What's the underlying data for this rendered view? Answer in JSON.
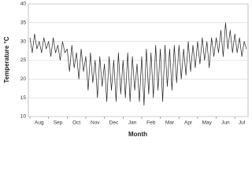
{
  "chart_data": {
    "type": "line",
    "xlabel": "Month",
    "ylabel": "Temperature °C",
    "categories": [
      null,
      null,
      null,
      null,
      "Aug",
      null,
      null,
      null,
      null,
      null,
      null,
      null,
      "Sep",
      null,
      null,
      null,
      null,
      null,
      null,
      null,
      "Oct",
      null,
      null,
      null,
      null,
      null,
      null,
      null,
      "Nov",
      null,
      null,
      null,
      null,
      null,
      null,
      null,
      "Dec",
      null,
      null,
      null,
      null,
      null,
      null,
      null,
      "Jan",
      null,
      null,
      null,
      null,
      null,
      null,
      null,
      "Feb",
      null,
      null,
      null,
      null,
      null,
      null,
      null,
      "Mar",
      null,
      null,
      null,
      null,
      null,
      null,
      null,
      "Apr",
      null,
      null,
      null,
      null,
      null,
      null,
      null,
      "May",
      null,
      null,
      null,
      null,
      null,
      null,
      null,
      "Jun",
      null,
      null,
      null,
      null,
      null,
      null,
      "Jul",
      null,
      null
    ],
    "series": [
      {
        "color": "#222222",
        "values": [
          31,
          27,
          32,
          28,
          30,
          27,
          31,
          28,
          30,
          26,
          31,
          27,
          29,
          25,
          30,
          27,
          28,
          22,
          29,
          23,
          27,
          20,
          28,
          22,
          26,
          17,
          27,
          19,
          25,
          15,
          26,
          18,
          24,
          14,
          26,
          17,
          25,
          14,
          27,
          16,
          25,
          15,
          27,
          14,
          26,
          17,
          24,
          14,
          26,
          13,
          28,
          16,
          27,
          15,
          29,
          17,
          28,
          14,
          29,
          18,
          28,
          17,
          29,
          19,
          29,
          20,
          28,
          21,
          30,
          22,
          29,
          23,
          30,
          24,
          31,
          25,
          30,
          23,
          31,
          26,
          31,
          27,
          33,
          26,
          35,
          28,
          33,
          27,
          32,
          27,
          31,
          26,
          30,
          28
        ]
      }
    ],
    "ylim": [
      10,
      40
    ],
    "yticks": [
      10,
      15,
      20,
      25,
      30,
      35,
      40
    ],
    "grid": true
  }
}
